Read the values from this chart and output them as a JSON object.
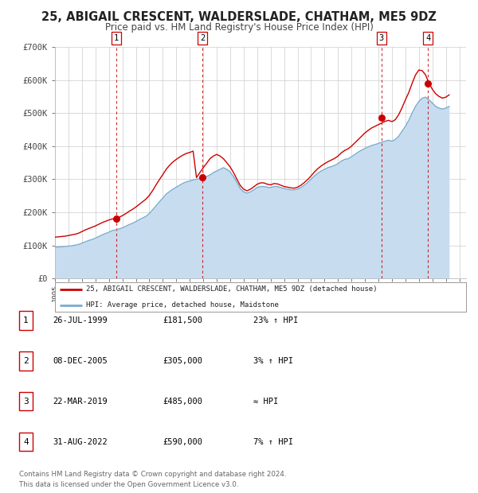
{
  "title": "25, ABIGAIL CRESCENT, WALDERSLADE, CHATHAM, ME5 9DZ",
  "subtitle": "Price paid vs. HM Land Registry's House Price Index (HPI)",
  "ylim": [
    0,
    700000
  ],
  "yticks": [
    0,
    100000,
    200000,
    300000,
    400000,
    500000,
    600000,
    700000
  ],
  "ytick_labels": [
    "£0",
    "£100K",
    "£200K",
    "£300K",
    "£400K",
    "£500K",
    "£600K",
    "£700K"
  ],
  "xlim_start": 1995.0,
  "xlim_end": 2025.5,
  "background_color": "#ffffff",
  "plot_bg_color": "#ffffff",
  "grid_color": "#cccccc",
  "sale_color": "#cc0000",
  "hpi_color": "#7aaccc",
  "hpi_fill_color": "#c8dcf0",
  "sales": [
    {
      "year": 1999.57,
      "price": 181500,
      "label": "1"
    },
    {
      "year": 2005.93,
      "price": 305000,
      "label": "2"
    },
    {
      "year": 2019.22,
      "price": 485000,
      "label": "3"
    },
    {
      "year": 2022.67,
      "price": 590000,
      "label": "4"
    }
  ],
  "legend_entries": [
    "25, ABIGAIL CRESCENT, WALDERSLADE, CHATHAM, ME5 9DZ (detached house)",
    "HPI: Average price, detached house, Maidstone"
  ],
  "table_rows": [
    {
      "num": "1",
      "date": "26-JUL-1999",
      "price": "£181,500",
      "relation": "23% ↑ HPI"
    },
    {
      "num": "2",
      "date": "08-DEC-2005",
      "price": "£305,000",
      "relation": "3% ↑ HPI"
    },
    {
      "num": "3",
      "date": "22-MAR-2019",
      "price": "£485,000",
      "relation": "≈ HPI"
    },
    {
      "num": "4",
      "date": "31-AUG-2022",
      "price": "£590,000",
      "relation": "7% ↑ HPI"
    }
  ],
  "footnote1": "Contains HM Land Registry data © Crown copyright and database right 2024.",
  "footnote2": "This data is licensed under the Open Government Licence v3.0.",
  "hpi_data_x": [
    1995.0,
    1995.25,
    1995.5,
    1995.75,
    1996.0,
    1996.25,
    1996.5,
    1996.75,
    1997.0,
    1997.25,
    1997.5,
    1997.75,
    1998.0,
    1998.25,
    1998.5,
    1998.75,
    1999.0,
    1999.25,
    1999.5,
    1999.75,
    2000.0,
    2000.25,
    2000.5,
    2000.75,
    2001.0,
    2001.25,
    2001.5,
    2001.75,
    2002.0,
    2002.25,
    2002.5,
    2002.75,
    2003.0,
    2003.25,
    2003.5,
    2003.75,
    2004.0,
    2004.25,
    2004.5,
    2004.75,
    2005.0,
    2005.25,
    2005.5,
    2005.75,
    2006.0,
    2006.25,
    2006.5,
    2006.75,
    2007.0,
    2007.25,
    2007.5,
    2007.75,
    2008.0,
    2008.25,
    2008.5,
    2008.75,
    2009.0,
    2009.25,
    2009.5,
    2009.75,
    2010.0,
    2010.25,
    2010.5,
    2010.75,
    2011.0,
    2011.25,
    2011.5,
    2011.75,
    2012.0,
    2012.25,
    2012.5,
    2012.75,
    2013.0,
    2013.25,
    2013.5,
    2013.75,
    2014.0,
    2014.25,
    2014.5,
    2014.75,
    2015.0,
    2015.25,
    2015.5,
    2015.75,
    2016.0,
    2016.25,
    2016.5,
    2016.75,
    2017.0,
    2017.25,
    2017.5,
    2017.75,
    2018.0,
    2018.25,
    2018.5,
    2018.75,
    2019.0,
    2019.25,
    2019.5,
    2019.75,
    2020.0,
    2020.25,
    2020.5,
    2020.75,
    2021.0,
    2021.25,
    2021.5,
    2021.75,
    2022.0,
    2022.25,
    2022.5,
    2022.75,
    2023.0,
    2023.25,
    2023.5,
    2023.75,
    2024.0,
    2024.25
  ],
  "hpi_data_y": [
    95000,
    95500,
    96000,
    97000,
    98000,
    99000,
    101000,
    103000,
    107000,
    111000,
    115000,
    118000,
    122000,
    127000,
    132000,
    136000,
    140000,
    145000,
    147000,
    150000,
    153000,
    158000,
    163000,
    167000,
    172000,
    178000,
    183000,
    188000,
    196000,
    208000,
    220000,
    232000,
    243000,
    255000,
    263000,
    270000,
    276000,
    282000,
    288000,
    292000,
    295000,
    298000,
    300000,
    302000,
    303000,
    308000,
    313000,
    320000,
    325000,
    330000,
    335000,
    330000,
    322000,
    308000,
    290000,
    272000,
    262000,
    258000,
    262000,
    268000,
    275000,
    278000,
    278000,
    276000,
    275000,
    278000,
    278000,
    275000,
    272000,
    270000,
    268000,
    268000,
    270000,
    275000,
    282000,
    290000,
    300000,
    310000,
    318000,
    325000,
    330000,
    335000,
    338000,
    342000,
    347000,
    355000,
    360000,
    362000,
    368000,
    375000,
    382000,
    388000,
    393000,
    398000,
    402000,
    405000,
    408000,
    412000,
    415000,
    418000,
    415000,
    420000,
    430000,
    445000,
    460000,
    478000,
    500000,
    520000,
    535000,
    545000,
    548000,
    540000,
    530000,
    520000,
    515000,
    512000,
    515000,
    520000
  ],
  "property_data_x": [
    1995.0,
    1995.25,
    1995.5,
    1995.75,
    1996.0,
    1996.25,
    1996.5,
    1996.75,
    1997.0,
    1997.25,
    1997.5,
    1997.75,
    1998.0,
    1998.25,
    1998.5,
    1998.75,
    1999.0,
    1999.25,
    1999.5,
    1999.75,
    2000.0,
    2000.25,
    2000.5,
    2000.75,
    2001.0,
    2001.25,
    2001.5,
    2001.75,
    2002.0,
    2002.25,
    2002.5,
    2002.75,
    2003.0,
    2003.25,
    2003.5,
    2003.75,
    2004.0,
    2004.25,
    2004.5,
    2004.75,
    2005.0,
    2005.25,
    2005.5,
    2005.75,
    2006.0,
    2006.25,
    2006.5,
    2006.75,
    2007.0,
    2007.25,
    2007.5,
    2007.75,
    2008.0,
    2008.25,
    2008.5,
    2008.75,
    2009.0,
    2009.25,
    2009.5,
    2009.75,
    2010.0,
    2010.25,
    2010.5,
    2010.75,
    2011.0,
    2011.25,
    2011.5,
    2011.75,
    2012.0,
    2012.25,
    2012.5,
    2012.75,
    2013.0,
    2013.25,
    2013.5,
    2013.75,
    2014.0,
    2014.25,
    2014.5,
    2014.75,
    2015.0,
    2015.25,
    2015.5,
    2015.75,
    2016.0,
    2016.25,
    2016.5,
    2016.75,
    2017.0,
    2017.25,
    2017.5,
    2017.75,
    2018.0,
    2018.25,
    2018.5,
    2018.75,
    2019.0,
    2019.25,
    2019.5,
    2019.75,
    2020.0,
    2020.25,
    2020.5,
    2020.75,
    2021.0,
    2021.25,
    2021.5,
    2021.75,
    2022.0,
    2022.25,
    2022.5,
    2022.75,
    2023.0,
    2023.25,
    2023.5,
    2023.75,
    2024.0,
    2024.25
  ],
  "property_data_y": [
    125000,
    126000,
    127000,
    128000,
    130000,
    132000,
    134000,
    137000,
    142000,
    147000,
    151000,
    155000,
    159000,
    164000,
    169000,
    173000,
    177000,
    180000,
    181500,
    185000,
    190000,
    196000,
    203000,
    209000,
    216000,
    224000,
    232000,
    240000,
    251000,
    266000,
    283000,
    299000,
    314000,
    330000,
    342000,
    352000,
    360000,
    367000,
    373000,
    378000,
    381000,
    385000,
    305000,
    320000,
    335000,
    348000,
    362000,
    370000,
    375000,
    370000,
    362000,
    350000,
    337000,
    320000,
    300000,
    281000,
    270000,
    265000,
    270000,
    277000,
    285000,
    289000,
    289000,
    285000,
    283000,
    287000,
    286000,
    282000,
    278000,
    276000,
    274000,
    273000,
    276000,
    282000,
    290000,
    299000,
    310000,
    322000,
    332000,
    340000,
    347000,
    353000,
    358000,
    363000,
    370000,
    380000,
    387000,
    392000,
    400000,
    410000,
    420000,
    430000,
    440000,
    448000,
    455000,
    460000,
    465000,
    470000,
    475000,
    478000,
    474000,
    480000,
    495000,
    516000,
    540000,
    562000,
    590000,
    615000,
    630000,
    628000,
    615000,
    590000,
    572000,
    558000,
    550000,
    545000,
    548000,
    555000
  ]
}
